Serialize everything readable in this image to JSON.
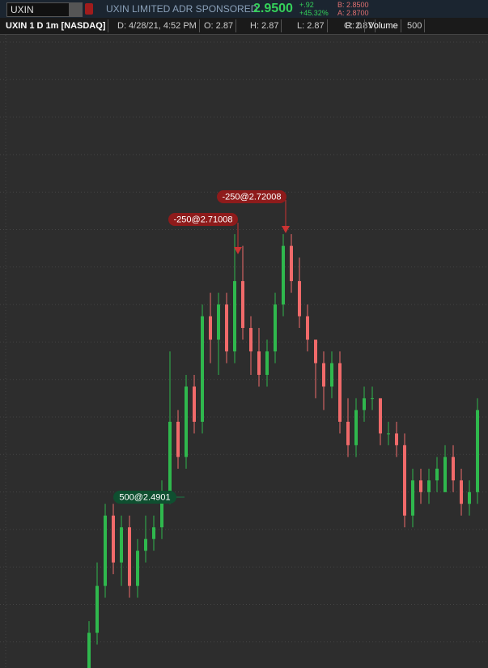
{
  "header": {
    "symbol": "UXIN",
    "description": "UXIN LIMITED ADR SPONSORED",
    "last": "2.9500",
    "change": "+.92",
    "change_pct": "+45.32%",
    "bid": "B: 2.8500",
    "ask": "A: 2.8700"
  },
  "info_bar": {
    "title": "UXIN 1 D 1m [NASDAQ]",
    "date": "D: 4/28/21, 4:52 PM",
    "open": "O: 2.87",
    "high": "H: 2.87",
    "low": "L: 2.87",
    "close": "C: 2.87",
    "range": "R: 0",
    "volume_label": "Volume",
    "volume": "500"
  },
  "chart_data": {
    "type": "candlestick",
    "categories": [
      null,
      null,
      null,
      null,
      null,
      null,
      null,
      null,
      null,
      null,
      null,
      null,
      null,
      null,
      null,
      null,
      null,
      null,
      null,
      null,
      null,
      null,
      null,
      null,
      null,
      null,
      null,
      null,
      null,
      null,
      null,
      null,
      null,
      null,
      null,
      null,
      null,
      null,
      null,
      null,
      null,
      null,
      null,
      null,
      null,
      null,
      null,
      null,
      null
    ],
    "open": [
      2.35,
      2.38,
      2.42,
      2.48,
      2.44,
      2.47,
      2.42,
      2.45,
      2.46,
      2.47,
      2.5,
      2.56,
      2.53,
      2.59,
      2.56,
      2.65,
      2.63,
      2.66,
      2.62,
      2.68,
      2.64,
      2.62,
      2.6,
      2.62,
      2.66,
      2.71,
      2.68,
      2.65,
      2.63,
      2.61,
      2.59,
      2.61,
      2.56,
      2.54,
      2.57,
      2.58,
      2.58,
      2.55,
      2.55,
      2.54,
      2.48,
      2.51,
      2.5,
      2.51,
      2.5,
      2.53,
      2.51,
      2.49,
      2.5
    ],
    "high": [
      2.39,
      2.44,
      2.49,
      2.49,
      2.48,
      2.48,
      2.46,
      2.48,
      2.48,
      2.51,
      2.62,
      2.57,
      2.6,
      2.6,
      2.66,
      2.67,
      2.67,
      2.67,
      2.72,
      2.71,
      2.65,
      2.64,
      2.63,
      2.67,
      2.72,
      2.72,
      2.7,
      2.66,
      2.63,
      2.62,
      2.62,
      2.62,
      2.58,
      2.58,
      2.59,
      2.59,
      2.58,
      2.56,
      2.56,
      2.55,
      2.52,
      2.52,
      2.52,
      2.53,
      2.54,
      2.54,
      2.52,
      2.51,
      2.58
    ],
    "low": [
      2.34,
      2.37,
      2.41,
      2.43,
      2.42,
      2.41,
      2.41,
      2.44,
      2.45,
      2.46,
      2.49,
      2.52,
      2.52,
      2.55,
      2.55,
      2.61,
      2.6,
      2.61,
      2.61,
      2.63,
      2.6,
      2.59,
      2.59,
      2.61,
      2.65,
      2.67,
      2.64,
      2.62,
      2.58,
      2.57,
      2.58,
      2.55,
      2.53,
      2.53,
      2.56,
      2.57,
      2.54,
      2.54,
      2.53,
      2.47,
      2.47,
      2.49,
      2.49,
      2.5,
      2.5,
      2.5,
      2.48,
      2.48,
      2.49
    ],
    "close": [
      2.38,
      2.42,
      2.48,
      2.44,
      2.47,
      2.42,
      2.45,
      2.46,
      2.47,
      2.5,
      2.56,
      2.53,
      2.59,
      2.56,
      2.65,
      2.63,
      2.66,
      2.62,
      2.68,
      2.64,
      2.62,
      2.6,
      2.62,
      2.66,
      2.71,
      2.68,
      2.65,
      2.63,
      2.61,
      2.59,
      2.61,
      2.56,
      2.54,
      2.57,
      2.58,
      2.58,
      2.55,
      2.55,
      2.54,
      2.48,
      2.51,
      2.5,
      2.51,
      2.52,
      2.53,
      2.51,
      2.49,
      2.5,
      2.57
    ],
    "ylim": [
      2.35,
      2.89
    ],
    "up_color": "#2fb84d",
    "down_color": "#f06a6a",
    "orders": [
      "-250@2.72008",
      "-250@2.71008",
      "500@2.4901"
    ]
  }
}
